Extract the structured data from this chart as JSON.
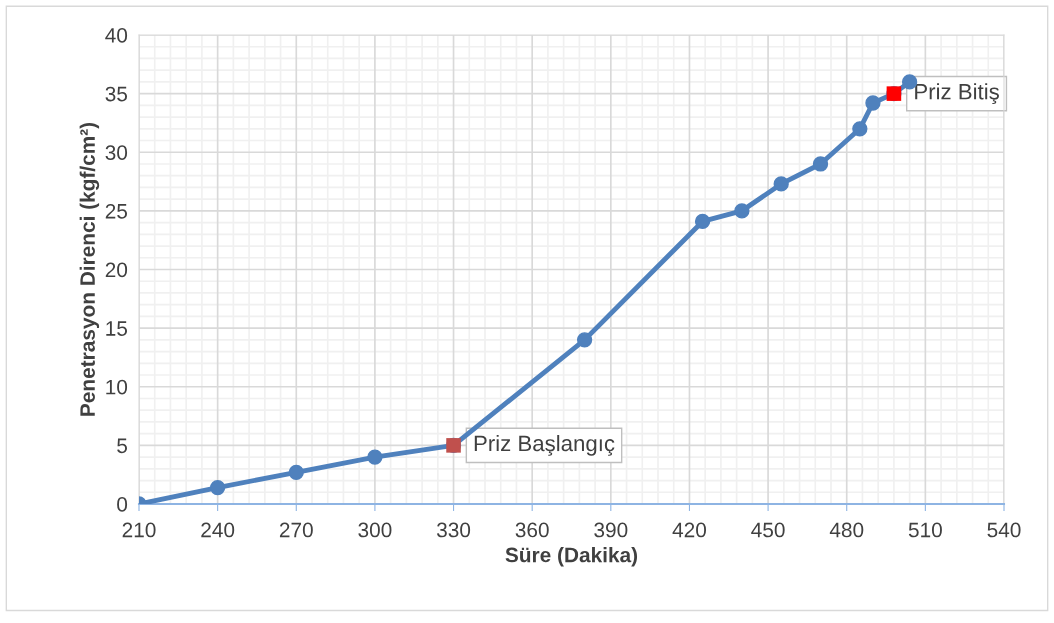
{
  "chart_data": {
    "type": "line",
    "xlabel": "Süre (Dakika)",
    "ylabel": "Penetrasyon Direnci (kgf/cm²)",
    "series": [
      {
        "color": "#4f81bd",
        "marker": "circle",
        "x": [
          210,
          240,
          270,
          300,
          330,
          380,
          425,
          440,
          455,
          470,
          485,
          490,
          498,
          504
        ],
        "values": [
          0,
          1.4,
          2.7,
          4.0,
          5.0,
          14.0,
          24.1,
          25.0,
          27.3,
          29.0,
          32.0,
          34.2,
          35.0,
          36.0
        ]
      },
      {
        "type": "scatter",
        "marker": "square",
        "colors": [
          "#c0504d",
          "#ff0000"
        ],
        "x": [
          330,
          498
        ],
        "values": [
          5.0,
          35.0
        ]
      }
    ],
    "annotations": [
      {
        "text": "Priz Başlangıç",
        "x": 330,
        "y": 5.0
      },
      {
        "text": "Priz Bitiş",
        "x": 498,
        "y": 35.0
      }
    ],
    "xlim": [
      210,
      540
    ],
    "xticks": [
      210,
      240,
      270,
      300,
      330,
      360,
      390,
      420,
      450,
      480,
      510,
      540
    ],
    "ylim": [
      0,
      40
    ],
    "yticks": [
      0,
      5,
      10,
      15,
      20,
      25,
      30,
      35,
      40
    ],
    "grid": true
  }
}
